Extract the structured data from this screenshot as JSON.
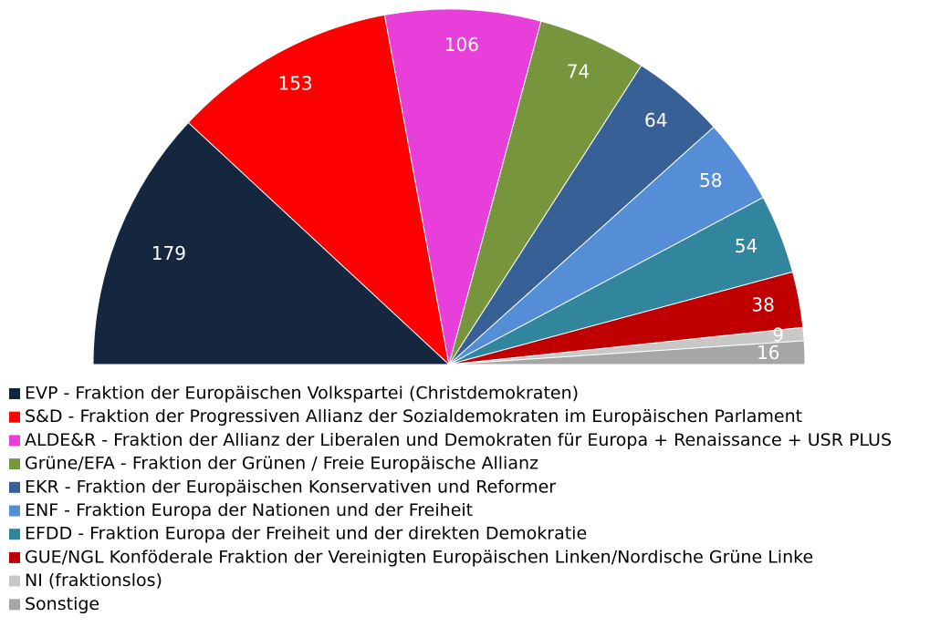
{
  "chart_data": {
    "type": "pie",
    "half": true,
    "categories": [
      "EVP - Fraktion der Europäischen Volkspartei (Christdemokraten)",
      "S&D - Fraktion der Progressiven Allianz der Sozialdemokraten im Europäischen Parlament",
      "ALDE&R - Fraktion der Allianz der Liberalen und Demokraten für Europa + Renaissance + USR PLUS",
      "Grüne/EFA - Fraktion der Grünen / Freie Europäische Allianz",
      "EKR - Fraktion der Europäischen Konservativen und Reformer",
      "ENF - Fraktion Europa der Nationen und der Freiheit",
      "EFDD - Fraktion Europa der Freiheit und der direkten Demokratie",
      "GUE/NGL Konföderale Fraktion der Vereinigten Europäischen Linken/Nordische Grüne Linke",
      "NI (fraktionslos)",
      "Sonstige"
    ],
    "values": [
      179,
      153,
      106,
      74,
      64,
      58,
      54,
      38,
      9,
      16
    ],
    "colors": [
      "#14273f",
      "#ff0000",
      "#e83fdb",
      "#77953d",
      "#376096",
      "#558ed6",
      "#31859c",
      "#c00000",
      "#c8c8c8",
      "#a6a6a6"
    ],
    "legend": "bottom-left"
  }
}
